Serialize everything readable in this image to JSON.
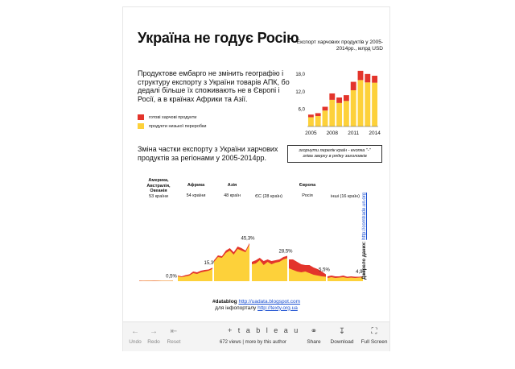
{
  "infographic": {
    "title": "Україна не годує Росію",
    "intro_text": "Продуктове ембарго не змінить географію і структуру експорту з України товарів АПК, бо дедалі більше їх споживають не в Європі і Росії, а в країнах Африки та Азії.",
    "legend": [
      {
        "label": "готові харчові продукти",
        "color": "#e3342b"
      },
      {
        "label": "продукти низької переробки",
        "color": "#fdd13a"
      }
    ],
    "subtitle": "Зміна частки експорту з України харчових продуктів за регіонами у 2005-2014рр.",
    "hint_line1": "згорнути перелік країн - кнопка \"-\"",
    "hint_line2": "зліва зверху в рядку заголовків",
    "source_label": "Джерело даних:",
    "source_link": "http://comtrade.un.org",
    "footer_prefix": "#datablog",
    "footer_link1": "http://uadata.blogspot.com",
    "footer_middle": "для інфопорталу",
    "footer_link2": "http://texty.org.ua"
  },
  "regions": [
    {
      "name": "Америка, Австралія, Океанія",
      "count": "53 країни",
      "share_label": "0,5%"
    },
    {
      "name": "Африка",
      "count": "54 країни",
      "share_label": "15,3%"
    },
    {
      "name": "Азія",
      "count": "48 країн",
      "share_label": "45,3%"
    },
    {
      "name": "",
      "count": "ЄС (28 країн)",
      "share_label": "28,5%"
    },
    {
      "name": "Європа",
      "count": "Росія",
      "share_label": "5,5%"
    },
    {
      "name": "",
      "count": "інші (16 країн)",
      "share_label": "4,9%"
    }
  ],
  "chart_data": [
    {
      "type": "bar",
      "title": "Експорт харчових продуктів у 2005-2014рр., млрд USD",
      "categories": [
        "2005",
        "2006",
        "2007",
        "2008",
        "2009",
        "2010",
        "2011",
        "2012",
        "2013",
        "2014"
      ],
      "x_tick_labels": [
        "2005",
        "2008",
        "2011",
        "2014"
      ],
      "y_tick_labels": [
        "6,0",
        "12,0",
        "18,0"
      ],
      "ylim": [
        0,
        20
      ],
      "series": [
        {
          "name": "продукти низької переробки",
          "values": [
            3.2,
            3.6,
            5.5,
            9.2,
            8.1,
            8.8,
            12.5,
            16.0,
            15.2,
            15.1
          ]
        },
        {
          "name": "готові харчові продукти",
          "values": [
            0.9,
            1.0,
            1.3,
            2.2,
            1.9,
            2.0,
            2.9,
            3.2,
            2.9,
            2.4
          ]
        }
      ]
    },
    {
      "type": "area",
      "title": "Зміна частки експорту з України харчових продуктів за регіонами у 2005-2014рр.",
      "x": [
        "2005",
        "2006",
        "2007",
        "2008",
        "2009",
        "2010",
        "2011",
        "2012",
        "2013",
        "2014"
      ],
      "panels": [
        {
          "region": "Америка, Австралія, Океанія",
          "yellow": [
            0.3,
            0.3,
            0.4,
            0.4,
            0.3,
            0.4,
            0.4,
            0.4,
            0.4,
            0.5
          ],
          "red": [
            0.4,
            0.3,
            0.3,
            0.3,
            0.4,
            0.3,
            0.2,
            0.2,
            0.2,
            0.2
          ]
        },
        {
          "region": "Африка",
          "yellow": [
            6,
            5,
            6,
            7,
            10,
            9,
            11,
            12,
            13,
            15.3
          ],
          "red": [
            1,
            1,
            1.5,
            1.5,
            2,
            2,
            2,
            2,
            1.5,
            1.5
          ]
        },
        {
          "region": "Азія",
          "yellow": [
            24,
            30,
            29,
            35,
            38,
            33,
            40,
            38,
            36,
            45.3
          ],
          "red": [
            2,
            2,
            2,
            3,
            3,
            3,
            3,
            3,
            2,
            2
          ]
        },
        {
          "region": "ЄС",
          "yellow": [
            21,
            22,
            26,
            20,
            24,
            21,
            23,
            24,
            27,
            28.5
          ],
          "red": [
            3,
            4,
            3,
            5,
            3,
            4,
            3,
            3,
            3,
            3
          ]
        },
        {
          "region": "Росія",
          "yellow": [
            16,
            14,
            12,
            11,
            12,
            10,
            8,
            7,
            6,
            5.5
          ],
          "red": [
            11,
            13,
            12,
            10,
            8,
            10,
            9,
            8,
            6,
            3
          ]
        },
        {
          "region": "інші",
          "yellow": [
            4,
            5,
            4,
            4.5,
            5,
            4,
            4.5,
            4,
            4.5,
            4.9
          ],
          "red": [
            2,
            2,
            2,
            1.5,
            2,
            1.5,
            1.5,
            1.5,
            1,
            1
          ]
        }
      ]
    }
  ],
  "toolbar": {
    "undo": "Undo",
    "redo": "Redo",
    "reset": "Reset",
    "logo": "+ t a b l e a u",
    "views": "672 views | more by this author",
    "share": "Share",
    "download": "Download",
    "fullscreen": "Full Screen"
  }
}
